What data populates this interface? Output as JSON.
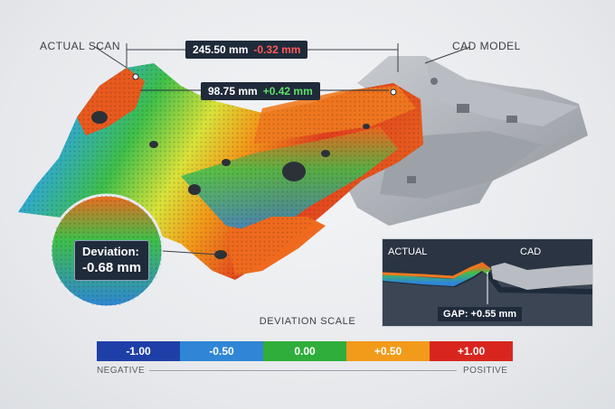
{
  "labels": {
    "actual_scan": "ACTUAL SCAN",
    "cad_model": "CAD MODEL"
  },
  "measurements": {
    "primary": {
      "value": "245.50 mm",
      "delta": "-0.32 mm"
    },
    "secondary": {
      "value": "98.75 mm",
      "delta": "+0.42 mm"
    }
  },
  "zoom_callout": {
    "title": "Deviation:",
    "value": "-0.68 mm"
  },
  "inset": {
    "actual_label": "ACTUAL",
    "cad_label": "CAD",
    "gap_label": "GAP: +0.55 mm"
  },
  "scale": {
    "title": "DEVIATION SCALE",
    "segments": [
      {
        "label": "-1.00",
        "color": "#1f3fa8"
      },
      {
        "label": "-0.50",
        "color": "#2f86d6"
      },
      {
        "label": "0.00",
        "color": "#2fae3c"
      },
      {
        "label": "+0.50",
        "color": "#f29a1a"
      },
      {
        "label": "+1.00",
        "color": "#d8261f"
      }
    ],
    "negative": "NEGATIVE",
    "positive": "POSITIVE"
  },
  "colors": {
    "panel_dark": "#1f2a3a",
    "negative_text": "#ff5a5a",
    "positive_text": "#5ee06a"
  }
}
